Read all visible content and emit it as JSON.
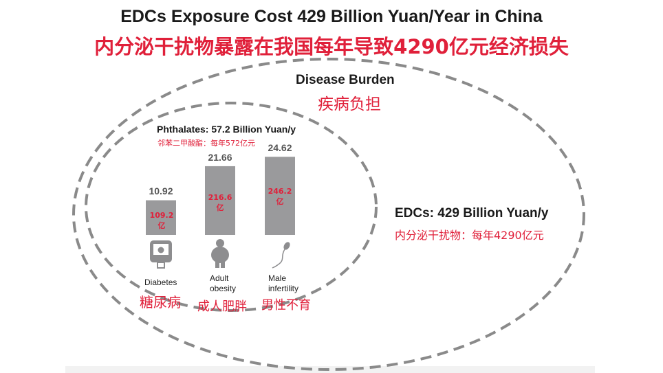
{
  "title": "EDCs Exposure Cost 429 Billion Yuan/Year in China",
  "subtitle": "内分泌干扰物暴露在我国每年导致4290亿元经济损失",
  "disease_burden": {
    "label": "Disease Burden",
    "label_cn": "疾病负担"
  },
  "edcs": {
    "label": "EDCs: 429 Billion Yuan/y",
    "label_cn": "内分泌干扰物：每年4290亿元"
  },
  "colors": {
    "accent_red": "#e0203a",
    "bar": "#9a9a9c",
    "dash": "#8a8a8a"
  },
  "chart_data": {
    "type": "bar",
    "title": "Phthalates: 57.2 Billion Yuan/y",
    "subtitle": "邻苯二甲酸酯：每年572亿元",
    "categories": [
      "Diabetes",
      "Adult obesity",
      "Male infertility"
    ],
    "categories_cn": [
      "糖尿病",
      "成人肥胖",
      "男性不育"
    ],
    "icons": [
      "glucose-meter-icon",
      "obese-person-icon",
      "sperm-icon"
    ],
    "values": [
      10.92,
      21.66,
      24.62
    ],
    "value_labels": [
      "10.92",
      "21.66",
      "24.62"
    ],
    "inner_labels": [
      "109.2亿",
      "216.6亿",
      "246.2亿"
    ],
    "ylim": [
      0,
      25
    ],
    "grid": false
  }
}
